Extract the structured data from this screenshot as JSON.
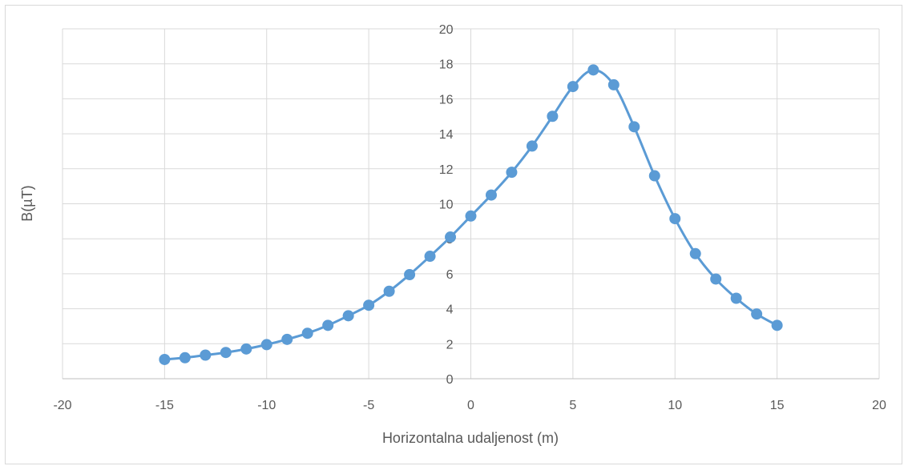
{
  "chart_data": {
    "type": "scatter",
    "title": "",
    "xlabel": "Horizontalna udaljenost (m)",
    "ylabel": "B(µT)",
    "xlim": [
      -20,
      20
    ],
    "ylim": [
      0,
      20
    ],
    "xticks": [
      -20,
      -15,
      -10,
      -5,
      0,
      5,
      10,
      15,
      20
    ],
    "yticks": [
      0,
      2,
      4,
      6,
      8,
      10,
      12,
      14,
      16,
      18,
      20
    ],
    "grid": true,
    "legend": "none",
    "series_color": "#5b9bd5",
    "series": [
      {
        "x": [
          -15,
          -14,
          -13,
          -12,
          -11,
          -10,
          -9,
          -8,
          -7,
          -6,
          -5,
          -4,
          -3,
          -2,
          -1,
          0,
          1,
          2,
          3,
          4,
          5,
          6,
          7,
          8,
          9,
          10,
          11,
          12,
          13,
          14,
          15
        ],
        "y": [
          1.1,
          1.2,
          1.35,
          1.5,
          1.7,
          1.95,
          2.25,
          2.6,
          3.05,
          3.6,
          4.2,
          5.0,
          5.95,
          7.0,
          8.1,
          9.3,
          10.5,
          11.8,
          13.3,
          15.0,
          16.7,
          17.65,
          16.8,
          14.4,
          11.6,
          9.15,
          7.15,
          5.7,
          4.6,
          3.7,
          3.05
        ]
      }
    ]
  }
}
